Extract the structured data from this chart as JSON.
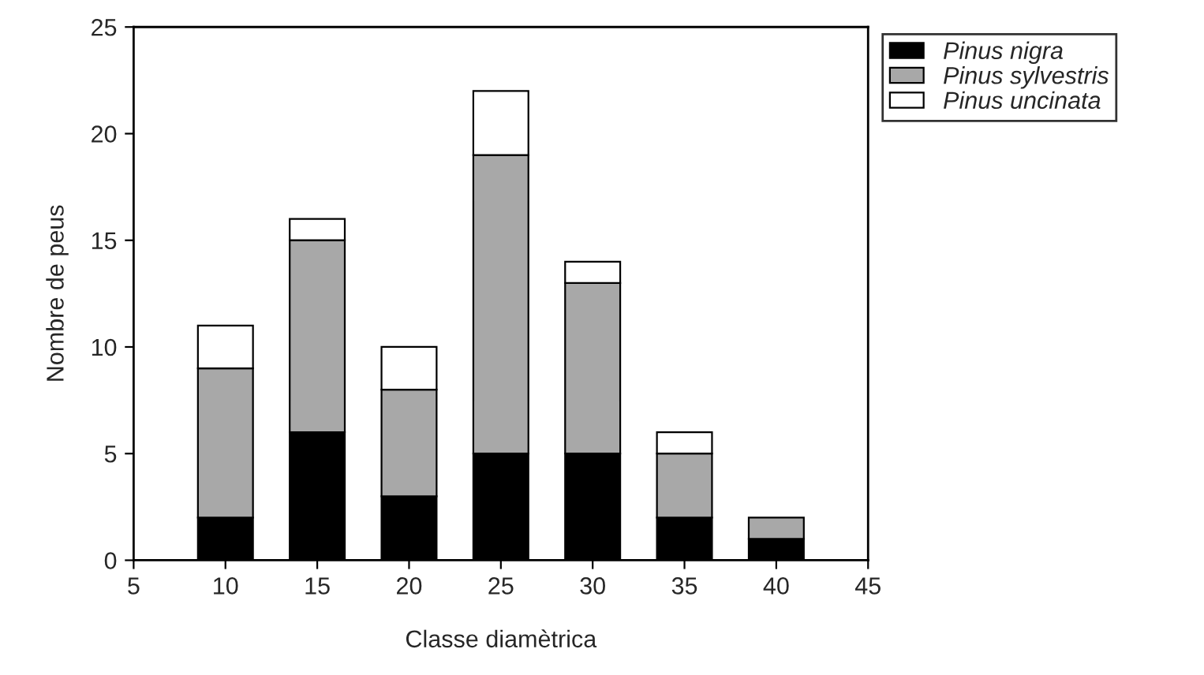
{
  "chart_data": {
    "type": "bar",
    "stacked": true,
    "xlabel": "Classe diamètrica",
    "ylabel": "Nombre de peus",
    "x": [
      10,
      15,
      20,
      25,
      30,
      35,
      40
    ],
    "series": [
      {
        "name": "Pinus nigra",
        "color": "#000000",
        "values": [
          2,
          6,
          3,
          5,
          5,
          2,
          1
        ]
      },
      {
        "name": "Pinus sylvestris",
        "color": "#a8a8a8",
        "values": [
          7,
          9,
          5,
          14,
          8,
          3,
          1
        ]
      },
      {
        "name": "Pinus uncinata",
        "color": "#ffffff",
        "values": [
          2,
          1,
          2,
          3,
          1,
          1,
          null
        ]
      }
    ],
    "xlim": [
      5,
      45
    ],
    "xticks": [
      5,
      10,
      15,
      20,
      25,
      30,
      35,
      40,
      45
    ],
    "ylim": [
      0,
      25
    ],
    "yticks": [
      0,
      5,
      10,
      15,
      20,
      25
    ],
    "grid": false,
    "legend": "top right"
  }
}
